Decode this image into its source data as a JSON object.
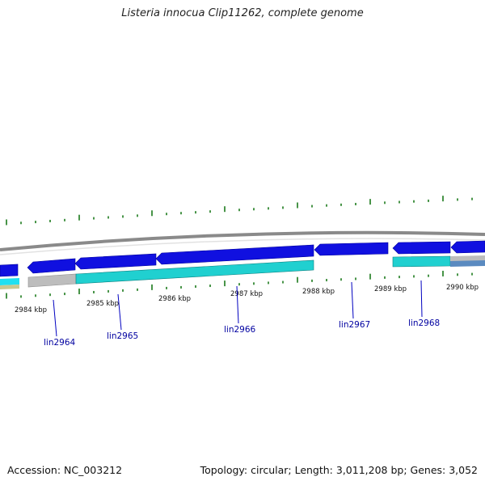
{
  "title": "Listeria innocua Clip11262, complete genome",
  "footer": {
    "accession": "Accession: NC_003212",
    "topology": "Topology: circular; Length: 3,011,208 bp; Genes: 3,052"
  },
  "kbp_labels": [
    {
      "kbp": 2984,
      "text": "2984 kbp"
    },
    {
      "kbp": 2985,
      "text": "2985 kbp"
    },
    {
      "kbp": 2986,
      "text": "2986 kbp"
    },
    {
      "kbp": 2987,
      "text": "2987 kbp"
    },
    {
      "kbp": 2988,
      "text": "2988 kbp"
    },
    {
      "kbp": 2989,
      "text": "2989 kbp"
    },
    {
      "kbp": 2990,
      "text": "2990 kbp"
    }
  ],
  "genes": [
    {
      "name": "lin2964"
    },
    {
      "name": "lin2965"
    },
    {
      "name": "lin2966"
    },
    {
      "name": "lin2967"
    },
    {
      "name": "lin2968"
    }
  ],
  "colors": {
    "cds": "#1010e0",
    "cds_dark": "#00009a",
    "feature": "#20d0d0",
    "feature_dark": "#088080",
    "grey_feature": "#bdbdbd",
    "ring": "#8a8a8a",
    "tick": "#1a7a1a",
    "label_line": "#0000c0"
  }
}
